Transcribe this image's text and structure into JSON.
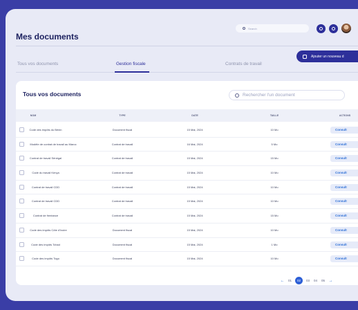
{
  "header": {
    "title": "Mes documents",
    "search_placeholder": "Search",
    "add_button_label": "Ajouter un nouveau d"
  },
  "tabs": [
    {
      "label": "Tous vos documents"
    },
    {
      "label": "Gestion fiscale"
    },
    {
      "label": "Contrats de travail"
    }
  ],
  "card": {
    "title": "Tous vos documents",
    "search_placeholder": "Rechercher l'un document"
  },
  "table": {
    "columns": {
      "name": "NOM",
      "type": "TYPE",
      "date": "DATE",
      "size": "TAILLE",
      "actions": "ACTIONS"
    },
    "action_label": "Consult",
    "rows": [
      {
        "name": "Code des impôts du  Bénin",
        "type": "Document fiscal",
        "date": "15 Mai, 2024",
        "size": "10 Mo"
      },
      {
        "name": "Modèle de contrat de travail au Maroc",
        "type": "Contrat de travail",
        "date": "16 Mai, 2024",
        "size": "5 Mo"
      },
      {
        "name": "Contrat de travail Sénégal",
        "type": "Contrat de travail",
        "date": "15 Mai, 2024",
        "size": "15 Mo"
      },
      {
        "name": "Code du travail Kenya",
        "type": "Contrat de travail",
        "date": "15 Mai, 2024",
        "size": "10 Mo"
      },
      {
        "name": "Contrat de travail CDD",
        "type": "Contrat de travail",
        "date": "15 Mai, 2024",
        "size": "10 Mo"
      },
      {
        "name": "Contrat de travail CDD",
        "type": "Contrat de travail",
        "date": "15 Mai, 2024",
        "size": "10 Mo"
      },
      {
        "name": "Contrat de freelance",
        "type": "Contrat de travail",
        "date": "15 Mai, 2024",
        "size": "15 Mo"
      },
      {
        "name": "Code des impôts Côte d'Ivoire",
        "type": "Document fiscal",
        "date": "15 Mai, 2024",
        "size": "10 Mo"
      },
      {
        "name": "Code des impôts Tchad",
        "type": "Document fiscal",
        "date": "15 Mai, 2024",
        "size": "1 Mo"
      },
      {
        "name": "Code des impôts Togo",
        "type": "Document fiscal",
        "date": "15 Mai, 2024",
        "size": "10 Mo"
      }
    ]
  },
  "pagination": {
    "prev": "←",
    "pages": [
      "01",
      "02",
      "03",
      "04",
      "05"
    ],
    "current": "02",
    "next": "→"
  }
}
